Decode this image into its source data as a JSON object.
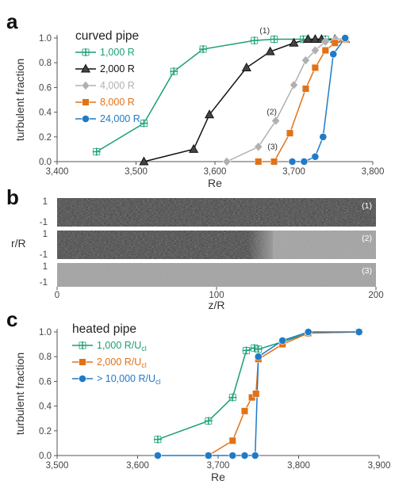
{
  "panels": {
    "a": {
      "letter": "a",
      "legend_title": "curved pipe"
    },
    "b": {
      "letter": "b"
    },
    "c": {
      "letter": "c",
      "legend_title": "heated pipe"
    }
  },
  "chart_data": [
    {
      "type": "line",
      "panel": "a",
      "xlabel": "Re",
      "ylabel": "turbulent fraction",
      "xlim": [
        3400,
        3800
      ],
      "ylim": [
        0,
        1.0
      ],
      "x_ticks": [
        "3,400",
        "3,500",
        "3,600",
        "3,700",
        "3,800"
      ],
      "y_ticks": [
        "0.0",
        "0.2",
        "0.4",
        "0.6",
        "0.8",
        "1.0"
      ],
      "grid": false,
      "legend_position": "top-left",
      "series": [
        {
          "name": "1,000 R",
          "color": "#1a9e78",
          "marker": "plus-square",
          "x": [
            3450,
            3510,
            3548,
            3585,
            3650,
            3675,
            3712,
            3740,
            3765
          ],
          "y": [
            0.08,
            0.31,
            0.73,
            0.91,
            0.98,
            0.99,
            0.99,
            0.99,
            0.99
          ]
        },
        {
          "name": "2,000 R",
          "color": "#111111",
          "marker": "triangle",
          "x": [
            3510,
            3573,
            3593,
            3640,
            3670,
            3700,
            3718,
            3727,
            3735,
            3752,
            3765
          ],
          "y": [
            0.0,
            0.1,
            0.38,
            0.76,
            0.89,
            0.96,
            0.99,
            0.99,
            0.99,
            0.99,
            0.99
          ]
        },
        {
          "name": "4,000 R",
          "color": "#b0b0b0",
          "marker": "diamond",
          "x": [
            3615,
            3655,
            3677,
            3700,
            3715,
            3727,
            3740,
            3753,
            3765
          ],
          "y": [
            0.0,
            0.12,
            0.33,
            0.62,
            0.82,
            0.9,
            0.97,
            0.99,
            0.99
          ]
        },
        {
          "name": "8,000 R",
          "color": "#e07218",
          "marker": "square",
          "x": [
            3655,
            3675,
            3695,
            3715,
            3727,
            3740,
            3752,
            3765
          ],
          "y": [
            0.0,
            0.0,
            0.23,
            0.59,
            0.76,
            0.9,
            0.96,
            0.99
          ]
        },
        {
          "name": "24,000 R",
          "color": "#1f7ac7",
          "marker": "circle",
          "x": [
            3698,
            3713,
            3727,
            3737,
            3750,
            3765
          ],
          "y": [
            0.0,
            0.0,
            0.04,
            0.2,
            0.87,
            1.0
          ]
        }
      ],
      "annotations": [
        {
          "text": "(1)",
          "x": 3663,
          "y": 1.04
        },
        {
          "text": "(2)",
          "x": 3672,
          "y": 0.38
        },
        {
          "text": "(3)",
          "x": 3673,
          "y": 0.1
        }
      ]
    },
    {
      "type": "heatmap",
      "panel": "b",
      "xlabel": "z/R",
      "ylabel": "r/R",
      "xlim": [
        0,
        200
      ],
      "x_ticks": [
        "0",
        "100",
        "200"
      ],
      "y_ticks": [
        "1",
        "-1"
      ],
      "strips": [
        {
          "label": "(1)",
          "turbulent_range_zR": [
            0,
            200
          ]
        },
        {
          "label": "(2)",
          "turbulent_range_zR": [
            0,
            135
          ]
        },
        {
          "label": "(3)",
          "turbulent_range_zR": []
        }
      ]
    },
    {
      "type": "line",
      "panel": "c",
      "xlabel": "Re",
      "ylabel": "turbulent fraction",
      "xlim": [
        3500,
        3900
      ],
      "ylim": [
        0,
        1.0
      ],
      "x_ticks": [
        "3,500",
        "3,600",
        "3,700",
        "3,800",
        "3,900"
      ],
      "y_ticks": [
        "0.0",
        "0.2",
        "0.4",
        "0.6",
        "0.8",
        "1.0"
      ],
      "grid": false,
      "legend_position": "top-left",
      "series": [
        {
          "name": "1,000 R/U",
          "name_sub": "cl",
          "color": "#1a9e78",
          "marker": "plus-square",
          "x": [
            3625,
            3688,
            3718,
            3735,
            3745,
            3750,
            3780,
            3812,
            3875
          ],
          "y": [
            0.13,
            0.28,
            0.47,
            0.85,
            0.87,
            0.86,
            0.92,
            0.99,
            1.0
          ]
        },
        {
          "name": "2,000 R/U",
          "name_sub": "cl",
          "color": "#e07218",
          "marker": "square",
          "x": [
            3688,
            3718,
            3733,
            3742,
            3747,
            3750,
            3780,
            3812,
            3875
          ],
          "y": [
            0.0,
            0.12,
            0.36,
            0.47,
            0.5,
            0.78,
            0.9,
            0.99,
            1.0
          ]
        },
        {
          "name": "> 10,000 R/U",
          "name_sub": "cl",
          "color": "#1f7ac7",
          "marker": "circle",
          "x": [
            3625,
            3688,
            3718,
            3733,
            3746,
            3750,
            3780,
            3812,
            3875
          ],
          "y": [
            0.0,
            0.0,
            0.0,
            0.0,
            0.0,
            0.8,
            0.93,
            1.0,
            1.0
          ]
        }
      ]
    }
  ]
}
